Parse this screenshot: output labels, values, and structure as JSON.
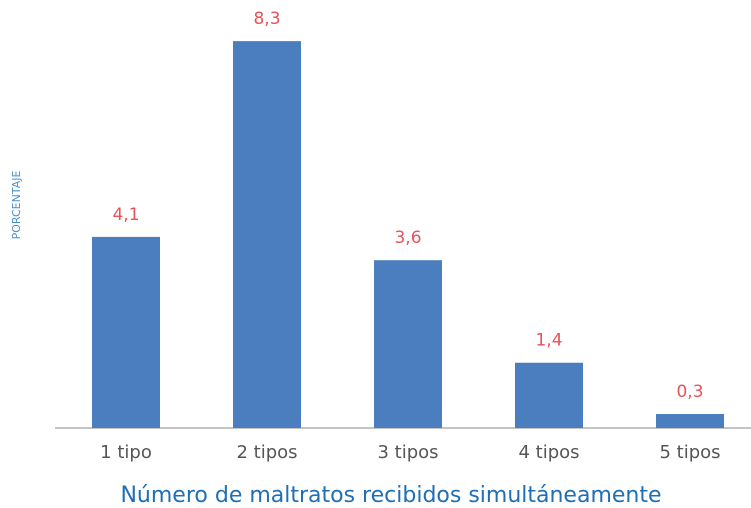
{
  "chart_data": {
    "type": "bar",
    "x_label": "Número de maltratos recibidos simultáneamente",
    "y_label": "PORCENTAJE",
    "categories": [
      "1 tipo",
      "2 tipos",
      "3 tipos",
      "4 tipos",
      "5 tipos"
    ],
    "values": [
      4.1,
      8.3,
      3.6,
      1.4,
      0.3
    ],
    "value_labels": [
      "4,1",
      "8,3",
      "3,6",
      "1,4",
      "0,3"
    ],
    "color": "#4a7ebf",
    "ylim": [
      0,
      9
    ]
  }
}
